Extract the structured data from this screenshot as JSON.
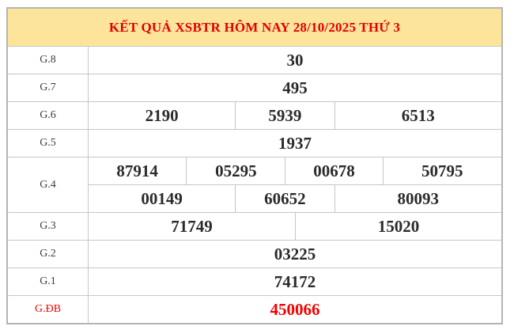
{
  "title": "KẾT QUẢ XSBTR HÔM NAY 28/10/2025 THỨ 3",
  "colors": {
    "header_bg": "#fce49b",
    "title_red": "#e30000",
    "special_red": "#f30000",
    "number_color": "#2b2b2b",
    "border_gray": "#c6c6c6",
    "outer_border_gray": "#b4b4b4"
  },
  "rows": [
    {
      "label": "G.8",
      "cells": [
        "30"
      ]
    },
    {
      "label": "G.7",
      "cells": [
        "495"
      ]
    },
    {
      "label": "G.6",
      "cells": [
        "2190",
        "5939",
        "6513"
      ]
    },
    {
      "label": "G.5",
      "cells": [
        "1937"
      ]
    },
    {
      "label": "G.4",
      "line1": [
        "87914",
        "05295",
        "00678",
        "50795"
      ],
      "line2": [
        "00149",
        "60652",
        "80093"
      ]
    },
    {
      "label": "G.3",
      "cells": [
        "71749",
        "15020"
      ]
    },
    {
      "label": "G.2",
      "cells": [
        "03225"
      ]
    },
    {
      "label": "G.1",
      "cells": [
        "74172"
      ]
    },
    {
      "label": "G.ĐB",
      "cells": [
        "450066"
      ],
      "special": true
    }
  ],
  "chart_data": {
    "type": "table",
    "title": "KẾT QUẢ XSBTR HÔM NAY 28/10/2025 THỨ 3",
    "columns": [
      "prize",
      "numbers"
    ],
    "rows": [
      [
        "G.8",
        [
          "30"
        ]
      ],
      [
        "G.7",
        [
          "495"
        ]
      ],
      [
        "G.6",
        [
          "2190",
          "5939",
          "6513"
        ]
      ],
      [
        "G.5",
        [
          "1937"
        ]
      ],
      [
        "G.4",
        [
          "87914",
          "05295",
          "00678",
          "50795",
          "00149",
          "60652",
          "80093"
        ]
      ],
      [
        "G.3",
        [
          "71749",
          "15020"
        ]
      ],
      [
        "G.2",
        [
          "03225"
        ]
      ],
      [
        "G.1",
        [
          "74172"
        ]
      ],
      [
        "G.ĐB",
        [
          "450066"
        ]
      ]
    ]
  }
}
